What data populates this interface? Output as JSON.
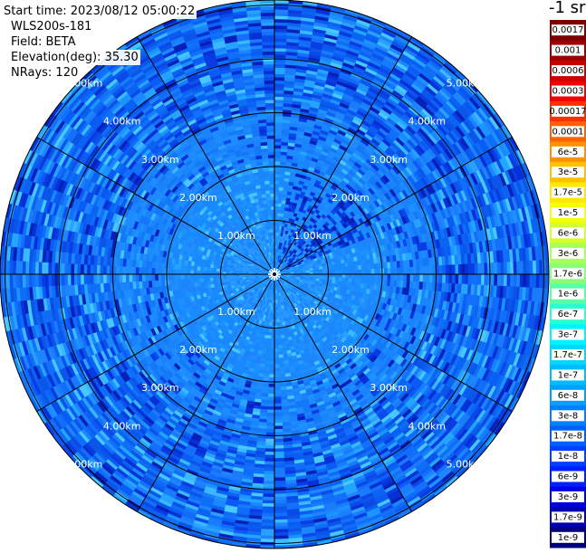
{
  "header": {
    "start_time": "Start time: 2023/08/12 05:00:22",
    "instrument": "WLS200s-181",
    "field": "Field: BETA",
    "elevation": "Elevation(deg): 35.30",
    "nrays": "NRays: 120"
  },
  "colorbar": {
    "unit_title": "-1 sr",
    "labels": [
      "0.0017",
      "0.001",
      "0.0006",
      "0.0003",
      "0.00017",
      "0.0001",
      "6e-5",
      "3e-5",
      "1.7e-5",
      "1e-5",
      "6e-6",
      "3e-6",
      "1.7e-6",
      "1e-6",
      "6e-7",
      "3e-7",
      "1.7e-7",
      "1e-7",
      "6e-8",
      "3e-8",
      "1.7e-8",
      "1e-8",
      "6e-9",
      "3e-9",
      "1.7e-9",
      "1e-9"
    ],
    "colors": [
      "#7a0000",
      "#9c0000",
      "#c80000",
      "#f00000",
      "#ff3000",
      "#ff6000",
      "#ff9000",
      "#ffc000",
      "#ffe800",
      "#f4ff0a",
      "#d4ff2a",
      "#a8ff56",
      "#88ff76",
      "#56ffa8",
      "#2affd4",
      "#00f4ff",
      "#00d8ff",
      "#00bcff",
      "#00a0ff",
      "#0080ff",
      "#0060ff",
      "#0040ff",
      "#0020ff",
      "#0000e0",
      "#0000b0",
      "#000080"
    ]
  },
  "chart_data": {
    "type": "heatmap",
    "projection": "polar (plan position indicator)",
    "field": "BETA",
    "rays": 120,
    "elevation_deg": 35.3,
    "range_rings_km": [
      1,
      2,
      3,
      4,
      5
    ],
    "range_ring_labels": [
      "1.00km",
      "2.00km",
      "3.00km",
      "4.00km",
      "5.00km"
    ],
    "azimuth_spokes_deg": [
      0,
      30,
      60,
      90,
      120,
      150,
      180,
      210,
      240,
      270,
      300,
      330
    ],
    "max_range_km": 5.7,
    "dominant_value_range": [
      "1e-8",
      "6e-8"
    ],
    "near_field_value_range": [
      "3e-9",
      "1e-8"
    ],
    "colorscale": "log"
  }
}
